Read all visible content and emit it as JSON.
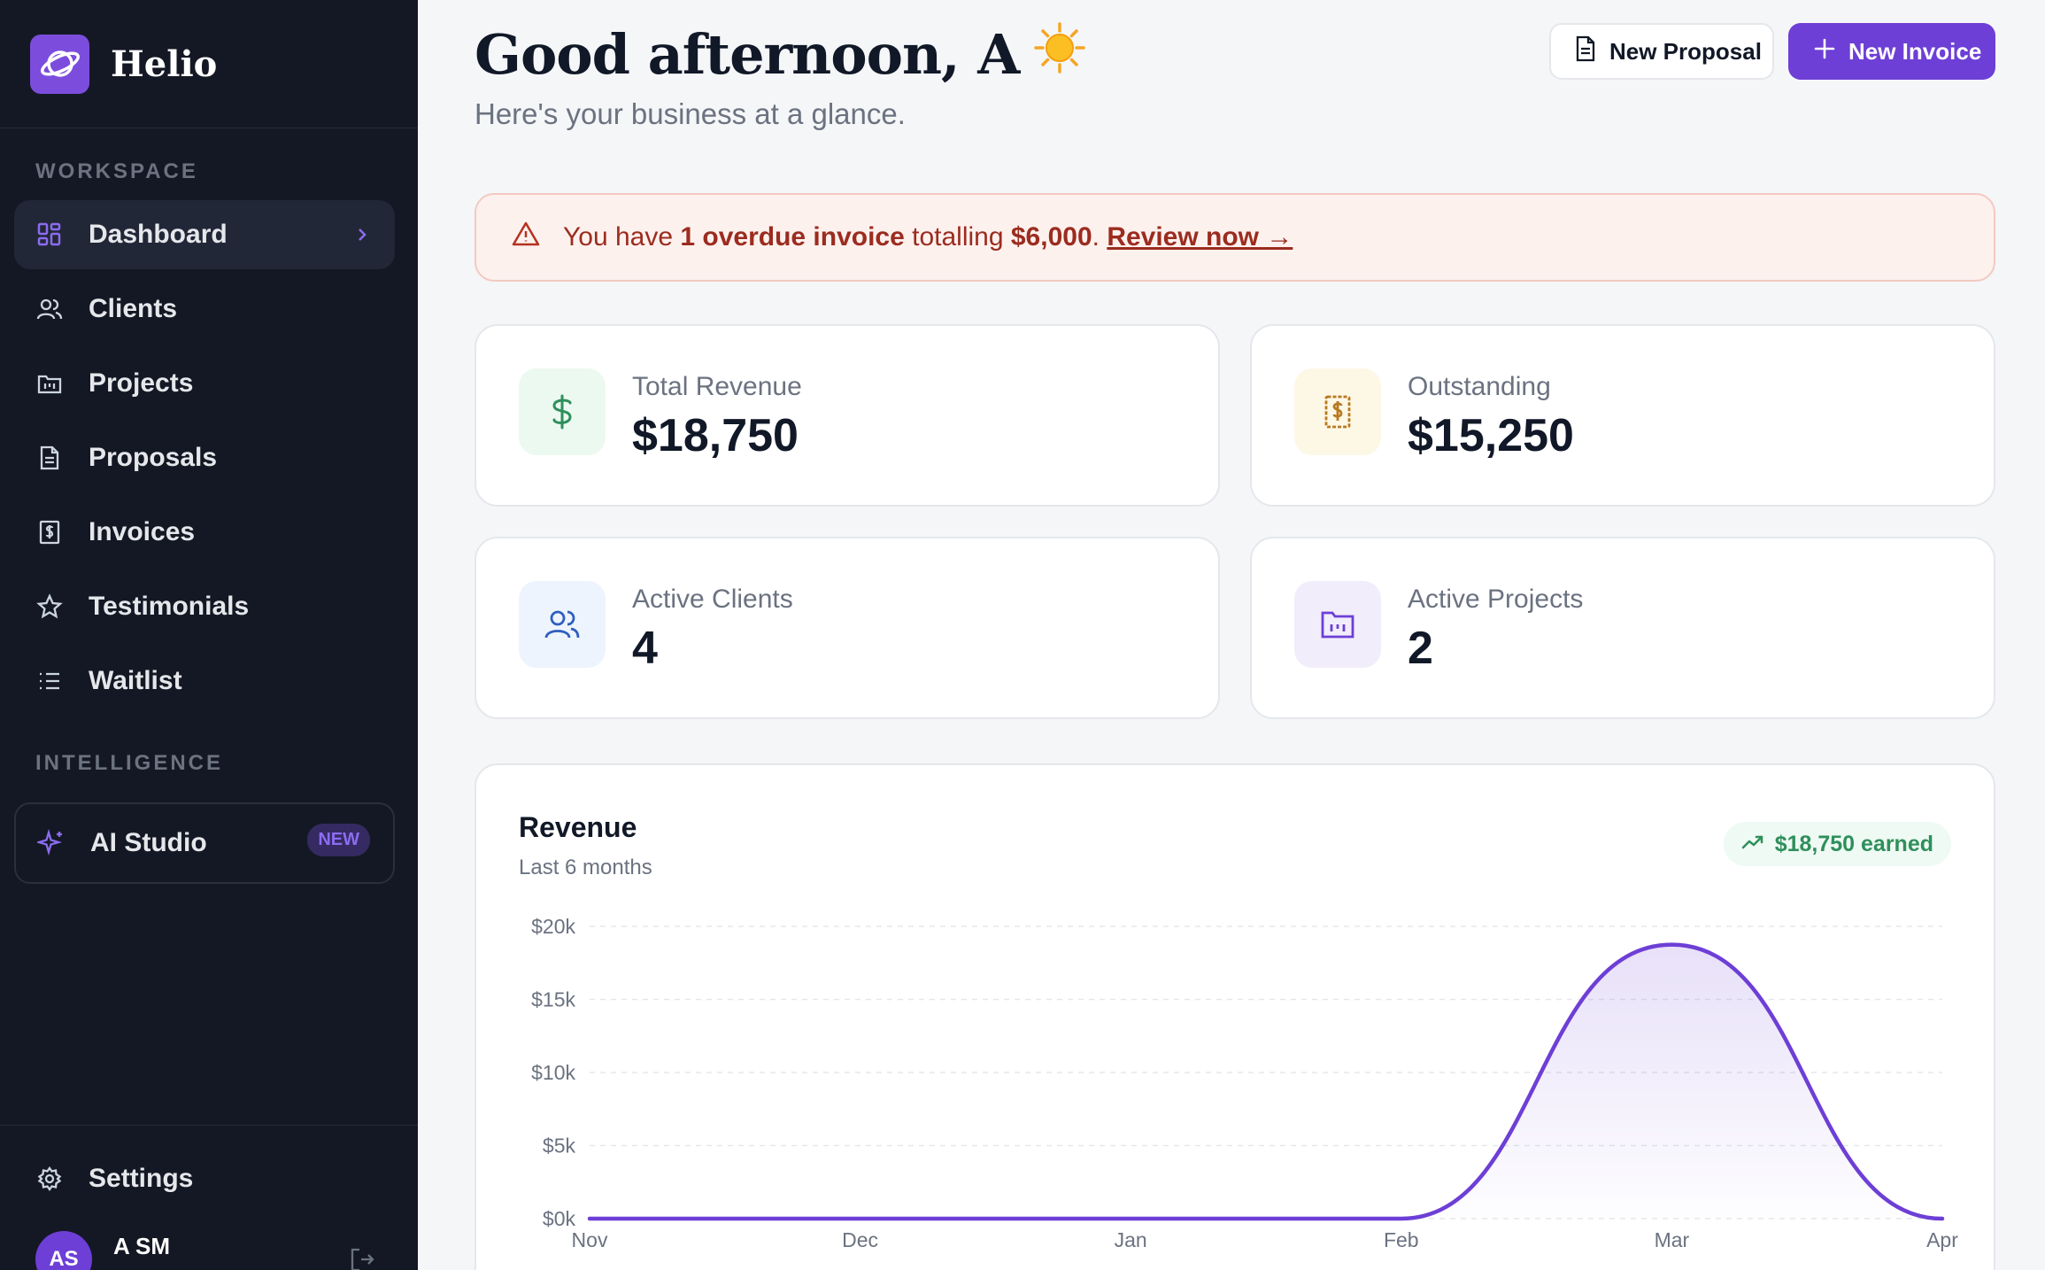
{
  "brand": {
    "name": "Helio"
  },
  "sidebar": {
    "workspace_label": "WORKSPACE",
    "intelligence_label": "INTELLIGENCE",
    "items": [
      {
        "label": "Dashboard",
        "icon": "grid-icon",
        "active": true
      },
      {
        "label": "Clients",
        "icon": "users-icon"
      },
      {
        "label": "Projects",
        "icon": "folder-chart-icon"
      },
      {
        "label": "Proposals",
        "icon": "document-icon"
      },
      {
        "label": "Invoices",
        "icon": "receipt-dollar-icon"
      },
      {
        "label": "Testimonials",
        "icon": "star-icon"
      },
      {
        "label": "Waitlist",
        "icon": "list-icon"
      }
    ],
    "ai": {
      "label": "AI Studio",
      "badge": "NEW",
      "icon": "sparkle-icon"
    },
    "settings_label": "Settings",
    "user": {
      "initials": "AS",
      "name": "A SM"
    }
  },
  "header": {
    "greeting": "Good afternoon, A",
    "subtitle": "Here's your business at a glance.",
    "new_proposal": "New Proposal",
    "new_invoice": "New Invoice"
  },
  "alert": {
    "prefix": "You have ",
    "count_text": "1 overdue invoice",
    "middle": " totalling ",
    "amount": "$6,000",
    "suffix": ". ",
    "link": "Review now →"
  },
  "stats": [
    {
      "label": "Total Revenue",
      "value": "$18,750",
      "icon": "dollar-icon"
    },
    {
      "label": "Outstanding",
      "value": "$15,250",
      "icon": "invoice-dollar-icon"
    },
    {
      "label": "Active Clients",
      "value": "4",
      "icon": "users-icon"
    },
    {
      "label": "Active Projects",
      "value": "2",
      "icon": "folder-chart-icon"
    }
  ],
  "colors": {
    "accent": "#6d3fd6",
    "sidebar_bg": "#141824",
    "alert_text": "#9b2c1f",
    "success": "#2f8f5b"
  },
  "chart_data": {
    "type": "area",
    "title": "Revenue",
    "subtitle": "Last 6 months",
    "badge": "$18,750 earned",
    "categories": [
      "Nov",
      "Dec",
      "Jan",
      "Feb",
      "Mar",
      "Apr"
    ],
    "values": [
      0,
      0,
      0,
      0,
      18750,
      0
    ],
    "y_ticks": [
      "$0k",
      "$5k",
      "$10k",
      "$15k",
      "$20k"
    ],
    "ylim": [
      0,
      20000
    ],
    "grid": true
  }
}
